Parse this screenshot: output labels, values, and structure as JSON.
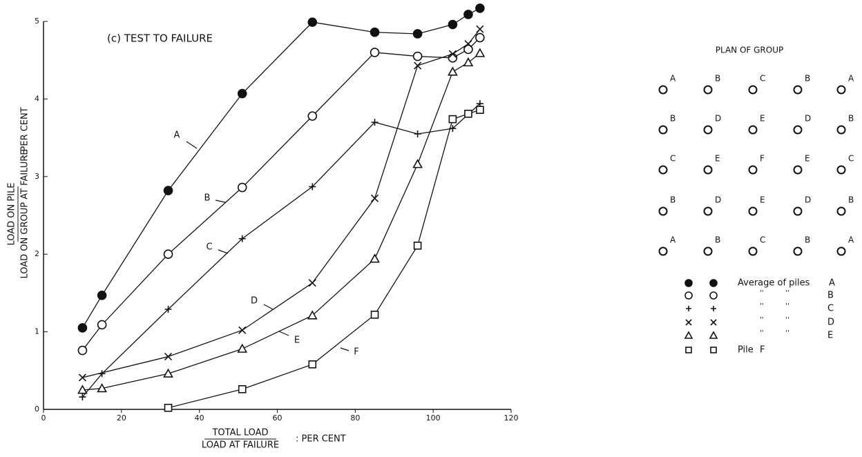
{
  "chart_data": {
    "type": "line",
    "title": "(c) TEST TO FAILURE",
    "x_label_numerator": "TOTAL LOAD",
    "x_label_denominator": "LOAD AT FAILURE",
    "x_label_suffix": ": PER CENT",
    "y_label_numerator": "LOAD ON PILE",
    "y_label_denominator": "LOAD ON GROUP AT FAILURE",
    "y_label_suffix": ": PER CENT",
    "xlim": [
      0,
      120
    ],
    "xticks": [
      0,
      20,
      40,
      60,
      80,
      100,
      120
    ],
    "ylim": [
      0,
      5
    ],
    "yticks": [
      0,
      1,
      2,
      3,
      4,
      5
    ],
    "series": [
      {
        "name": "A",
        "color": "#111111",
        "marker": "filled-circle",
        "x": [
          10,
          15,
          32,
          51,
          69,
          85,
          96,
          105,
          109,
          112
        ],
        "values": [
          1.05,
          1.47,
          2.82,
          4.07,
          4.99,
          4.86,
          4.84,
          4.96,
          5.09,
          5.17
        ]
      },
      {
        "name": "B",
        "color": "#111111",
        "marker": "open-circle",
        "x": [
          10,
          15,
          32,
          51,
          69,
          85,
          96,
          105,
          109,
          112
        ],
        "values": [
          0.76,
          1.09,
          2.0,
          2.86,
          3.78,
          4.6,
          4.55,
          4.53,
          4.64,
          4.79
        ]
      },
      {
        "name": "C",
        "color": "#111111",
        "marker": "plus",
        "x": [
          10,
          15,
          32,
          51,
          69,
          85,
          96,
          105,
          112
        ],
        "values": [
          0.16,
          0.46,
          1.29,
          2.2,
          2.87,
          3.7,
          3.55,
          3.62,
          3.94
        ]
      },
      {
        "name": "D",
        "color": "#111111",
        "marker": "cross",
        "x": [
          10,
          32,
          51,
          69,
          85,
          96,
          105,
          109,
          112
        ],
        "values": [
          0.41,
          0.68,
          1.02,
          1.63,
          2.72,
          4.43,
          4.58,
          4.71,
          4.9
        ]
      },
      {
        "name": "E",
        "color": "#111111",
        "marker": "triangle",
        "x": [
          10,
          15,
          32,
          51,
          69,
          85,
          96,
          105,
          109,
          112
        ],
        "values": [
          0.25,
          0.27,
          0.46,
          0.78,
          1.21,
          1.94,
          3.16,
          4.35,
          4.47,
          4.59
        ]
      },
      {
        "name": "F",
        "color": "#111111",
        "marker": "square",
        "x": [
          32,
          51,
          69,
          85,
          96,
          105,
          109,
          112
        ],
        "values": [
          0.02,
          0.26,
          0.58,
          1.22,
          2.11,
          3.74,
          3.81,
          3.86
        ]
      }
    ]
  },
  "plan": {
    "title": "PLAN OF GROUP",
    "grid": [
      [
        "A",
        "B",
        "C",
        "B",
        "A"
      ],
      [
        "B",
        "D",
        "E",
        "D",
        "B"
      ],
      [
        "C",
        "E",
        "F",
        "E",
        "C"
      ],
      [
        "B",
        "D",
        "E",
        "D",
        "B"
      ],
      [
        "A",
        "B",
        "C",
        "B",
        "A"
      ]
    ],
    "legend_text": [
      "Average of piles",
      "''          ''",
      "''          ''",
      "''          ''",
      "''          ''",
      "Pile"
    ]
  }
}
